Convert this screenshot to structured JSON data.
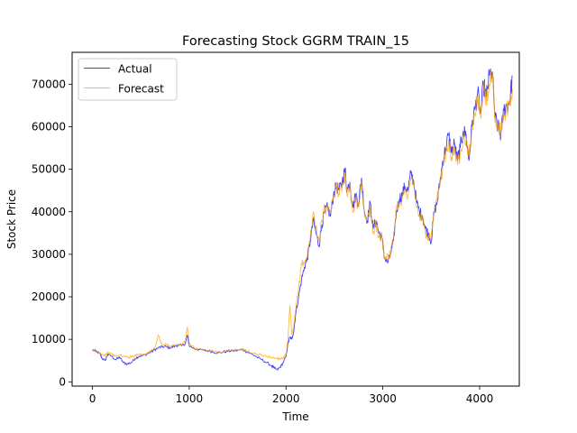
{
  "chart_data": {
    "type": "line",
    "title": "Forecasting Stock GGRM TRAIN_15",
    "xlabel": "Time",
    "ylabel": "Stock Price",
    "xlim": [
      -210,
      4410
    ],
    "ylim": [
      -1000,
      77500
    ],
    "xticks": [
      0,
      1000,
      2000,
      3000,
      4000
    ],
    "yticks": [
      0,
      10000,
      20000,
      30000,
      40000,
      50000,
      60000,
      70000
    ],
    "grid": false,
    "legend_position": "top-left",
    "series": [
      {
        "name": "Actual",
        "color": "#0000ff",
        "x": [
          0,
          40,
          80,
          100,
          130,
          160,
          200,
          240,
          280,
          320,
          360,
          400,
          440,
          480,
          520,
          560,
          600,
          640,
          680,
          720,
          760,
          800,
          840,
          880,
          920,
          960,
          980,
          1000,
          1050,
          1100,
          1150,
          1200,
          1250,
          1300,
          1350,
          1400,
          1450,
          1500,
          1550,
          1600,
          1650,
          1700,
          1750,
          1800,
          1850,
          1880,
          1910,
          1940,
          1970,
          2000,
          2020,
          2040,
          2060,
          2080,
          2100,
          2130,
          2160,
          2190,
          2220,
          2250,
          2280,
          2310,
          2340,
          2370,
          2400,
          2430,
          2460,
          2490,
          2520,
          2550,
          2580,
          2610,
          2630,
          2660,
          2690,
          2720,
          2750,
          2780,
          2810,
          2840,
          2870,
          2900,
          2930,
          2960,
          2990,
          3020,
          3050,
          3080,
          3110,
          3140,
          3170,
          3200,
          3230,
          3260,
          3290,
          3320,
          3350,
          3380,
          3410,
          3440,
          3470,
          3500,
          3530,
          3560,
          3590,
          3620,
          3650,
          3680,
          3710,
          3740,
          3770,
          3800,
          3830,
          3860,
          3890,
          3920,
          3950,
          3980,
          4010,
          4040,
          4070,
          4100,
          4130,
          4160,
          4190,
          4220,
          4250,
          4280,
          4310,
          4340
        ],
        "y": [
          7500,
          7200,
          6500,
          5500,
          5000,
          6500,
          6000,
          5200,
          5800,
          4500,
          4200,
          4500,
          5500,
          6000,
          6200,
          6500,
          7000,
          7500,
          8000,
          8200,
          8300,
          8000,
          8300,
          8600,
          8500,
          9000,
          11000,
          8500,
          7800,
          7600,
          7400,
          7300,
          7000,
          6800,
          7000,
          7200,
          7300,
          7400,
          7600,
          7000,
          6500,
          5800,
          5200,
          4500,
          3800,
          3200,
          2800,
          3500,
          4500,
          6000,
          9000,
          10500,
          10000,
          12000,
          16000,
          20000,
          24000,
          27000,
          29000,
          33000,
          38000,
          35000,
          32000,
          37000,
          40000,
          41000,
          39000,
          44000,
          46000,
          45000,
          47000,
          50000,
          45000,
          47000,
          41000,
          44000,
          42000,
          48000,
          40000,
          38000,
          42000,
          36000,
          38000,
          35000,
          34000,
          29000,
          28000,
          30000,
          33000,
          40000,
          43000,
          44000,
          46000,
          45000,
          49000,
          47000,
          42000,
          40000,
          39000,
          36000,
          35000,
          33000,
          40000,
          42000,
          47000,
          52000,
          55000,
          58000,
          54000,
          56000,
          52000,
          55000,
          59000,
          58000,
          52000,
          60000,
          64000,
          68000,
          63000,
          70000,
          67000,
          72000,
          73000,
          62000,
          60000,
          58000,
          64000,
          65000,
          66000,
          72000
        ],
        "values_precision": 1000
      },
      {
        "name": "Forecast",
        "color": "#ffa500",
        "x": [
          0,
          40,
          80,
          100,
          130,
          160,
          200,
          240,
          280,
          320,
          360,
          400,
          440,
          480,
          520,
          560,
          600,
          640,
          680,
          720,
          760,
          800,
          840,
          880,
          920,
          960,
          980,
          1000,
          1050,
          1100,
          1150,
          1200,
          1250,
          1300,
          1350,
          1400,
          1450,
          1500,
          1550,
          1600,
          1650,
          1700,
          1750,
          1800,
          1850,
          1880,
          1910,
          1940,
          1970,
          2000,
          2020,
          2040,
          2060,
          2080,
          2100,
          2130,
          2160,
          2190,
          2220,
          2250,
          2280,
          2310,
          2340,
          2370,
          2400,
          2430,
          2460,
          2490,
          2520,
          2550,
          2580,
          2610,
          2630,
          2660,
          2690,
          2720,
          2750,
          2780,
          2810,
          2840,
          2870,
          2900,
          2930,
          2960,
          2990,
          3020,
          3050,
          3080,
          3110,
          3140,
          3170,
          3200,
          3230,
          3260,
          3290,
          3320,
          3350,
          3380,
          3410,
          3440,
          3470,
          3500,
          3530,
          3560,
          3590,
          3620,
          3650,
          3680,
          3710,
          3740,
          3770,
          3800,
          3830,
          3860,
          3890,
          3920,
          3950,
          3980,
          4010,
          4040,
          4070,
          4100,
          4130,
          4160,
          4190,
          4220,
          4250,
          4280,
          4310,
          4340
        ],
        "y": [
          7200,
          7000,
          6800,
          6500,
          6200,
          6800,
          6500,
          6000,
          6300,
          6000,
          5800,
          5900,
          6200,
          6500,
          6500,
          6700,
          7200,
          7800,
          11000,
          8500,
          8800,
          8400,
          8600,
          8800,
          8700,
          9500,
          13000,
          9000,
          8000,
          7700,
          7500,
          7400,
          7200,
          7000,
          7100,
          7300,
          7400,
          7500,
          7700,
          7200,
          6800,
          6500,
          6200,
          6000,
          5800,
          5600,
          5500,
          5500,
          5600,
          6500,
          10000,
          18000,
          11000,
          13000,
          17000,
          22000,
          28000,
          28000,
          30000,
          34000,
          40000,
          36000,
          33000,
          38000,
          41000,
          40000,
          40000,
          43000,
          47000,
          44000,
          46000,
          49000,
          44000,
          46000,
          40000,
          43000,
          41000,
          47000,
          39000,
          38000,
          41000,
          35000,
          37000,
          34000,
          34000,
          29000,
          30000,
          30000,
          34000,
          41000,
          42000,
          43000,
          45000,
          44000,
          48000,
          46000,
          41000,
          39000,
          38000,
          35000,
          34000,
          34000,
          39000,
          43000,
          46000,
          51000,
          54000,
          57000,
          53000,
          55000,
          51000,
          54000,
          58000,
          57000,
          53000,
          59000,
          63000,
          67000,
          62000,
          69000,
          66000,
          70000,
          72000,
          61000,
          60000,
          59000,
          63000,
          64000,
          65000,
          69000
        ],
        "values_precision": 1000
      }
    ]
  }
}
